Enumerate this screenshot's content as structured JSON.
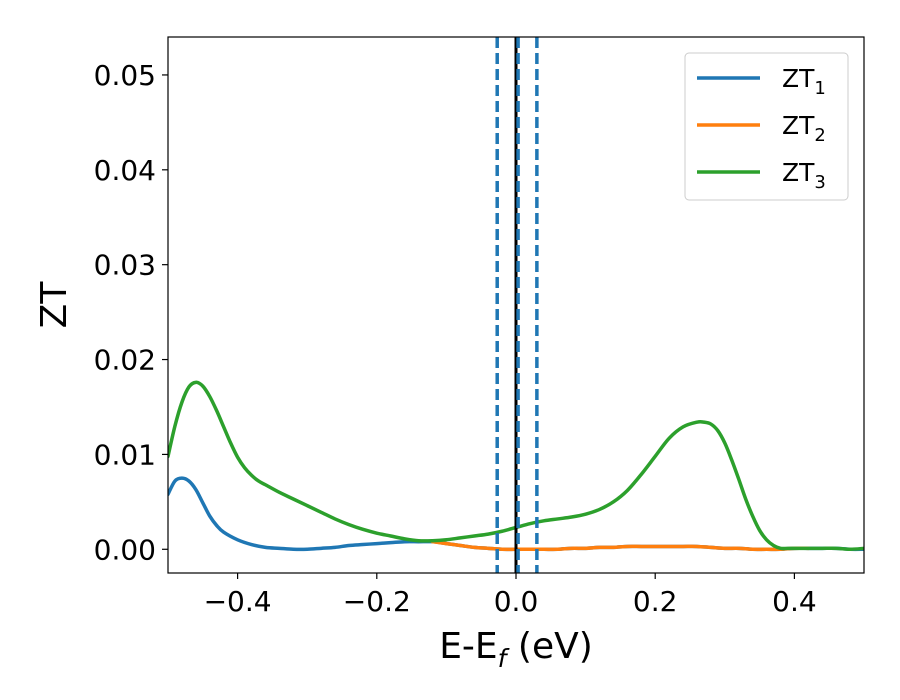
{
  "chart_data": {
    "type": "line",
    "xlabel": "E-E",
    "xlabel_sub": "f",
    "xlabel_unit": " (eV)",
    "ylabel": "ZT",
    "xlim": [
      -0.5,
      0.5
    ],
    "ylim": [
      -0.0025,
      0.054
    ],
    "xticks": [
      -0.4,
      -0.2,
      0.0,
      0.2,
      0.4
    ],
    "xtick_labels": [
      "−0.4",
      "−0.2",
      "0.0",
      "0.2",
      "0.4"
    ],
    "yticks": [
      0.0,
      0.01,
      0.02,
      0.03,
      0.04,
      0.05
    ],
    "ytick_labels": [
      "0.00",
      "0.01",
      "0.02",
      "0.03",
      "0.04",
      "0.05"
    ],
    "grid": false,
    "legend_position": "top-right",
    "series": [
      {
        "name": "ZT",
        "name_sub": "1",
        "color": "#1f77b4",
        "x": [
          -0.5,
          -0.49,
          -0.48,
          -0.47,
          -0.46,
          -0.45,
          -0.44,
          -0.43,
          -0.42,
          -0.4,
          -0.38,
          -0.36,
          -0.34,
          -0.32,
          -0.3,
          -0.28,
          -0.26,
          -0.24,
          -0.22,
          -0.2,
          -0.18,
          -0.16,
          -0.14,
          -0.12,
          -0.1,
          -0.08,
          -0.06,
          -0.04,
          -0.02,
          0.0,
          0.02,
          0.04,
          0.06,
          0.08,
          0.1,
          0.12,
          0.14,
          0.16,
          0.18,
          0.2,
          0.22,
          0.24,
          0.26,
          0.28,
          0.3,
          0.32,
          0.34,
          0.36,
          0.38,
          0.4,
          0.42,
          0.44,
          0.46,
          0.48,
          0.5
        ],
        "y": [
          0.0058,
          0.0072,
          0.0075,
          0.0072,
          0.0063,
          0.0049,
          0.0035,
          0.0025,
          0.0018,
          0.001,
          0.0005,
          0.0002,
          0.0001,
          0.0,
          0.0,
          0.0001,
          0.0002,
          0.0004,
          0.0005,
          0.0006,
          0.0007,
          0.0008,
          0.0008,
          0.0008,
          0.0006,
          0.0004,
          0.0002,
          0.0001,
          0.0,
          0.0,
          0.0,
          0.0,
          0.0,
          0.0001,
          0.0001,
          0.0002,
          0.0002,
          0.0003,
          0.0003,
          0.0003,
          0.0003,
          0.0003,
          0.0003,
          0.0002,
          0.0001,
          0.0001,
          0.0,
          0.0,
          0.0,
          0.0001,
          0.0001,
          0.0001,
          0.0001,
          0.0,
          0.0
        ]
      },
      {
        "name": "ZT",
        "name_sub": "2",
        "color": "#ff7f0e",
        "x": [
          -0.12,
          -0.1,
          -0.08,
          -0.06,
          -0.04,
          -0.02,
          0.0,
          0.02,
          0.04,
          0.06,
          0.08,
          0.1,
          0.12,
          0.14,
          0.16,
          0.18,
          0.2,
          0.22,
          0.24,
          0.26,
          0.28,
          0.3,
          0.32,
          0.34,
          0.36,
          0.38,
          0.4,
          0.42
        ],
        "y": [
          0.0008,
          0.0006,
          0.0004,
          0.0002,
          0.0001,
          0.0,
          0.0,
          0.0,
          0.0,
          0.0,
          0.0001,
          0.0001,
          0.0002,
          0.0002,
          0.0003,
          0.0003,
          0.0003,
          0.0003,
          0.0003,
          0.0003,
          0.0002,
          0.0001,
          0.0001,
          0.0,
          0.0,
          0.0,
          0.0001,
          0.0001
        ]
      },
      {
        "name": "ZT",
        "name_sub": "3",
        "color": "#2ca02c",
        "x": [
          -0.5,
          -0.49,
          -0.48,
          -0.47,
          -0.46,
          -0.45,
          -0.44,
          -0.43,
          -0.42,
          -0.41,
          -0.4,
          -0.39,
          -0.38,
          -0.37,
          -0.36,
          -0.34,
          -0.32,
          -0.3,
          -0.28,
          -0.26,
          -0.24,
          -0.22,
          -0.2,
          -0.18,
          -0.16,
          -0.14,
          -0.12,
          -0.1,
          -0.08,
          -0.06,
          -0.04,
          -0.02,
          0.0,
          0.02,
          0.04,
          0.06,
          0.08,
          0.1,
          0.12,
          0.14,
          0.16,
          0.18,
          0.2,
          0.22,
          0.24,
          0.26,
          0.27,
          0.28,
          0.29,
          0.3,
          0.31,
          0.32,
          0.33,
          0.34,
          0.35,
          0.36,
          0.37,
          0.38,
          0.39,
          0.4,
          0.41,
          0.42,
          0.44,
          0.46,
          0.48,
          0.5
        ],
        "y": [
          0.0098,
          0.013,
          0.0155,
          0.0171,
          0.0176,
          0.0172,
          0.0161,
          0.0146,
          0.0129,
          0.0112,
          0.0097,
          0.0086,
          0.0078,
          0.0072,
          0.0068,
          0.006,
          0.0053,
          0.0046,
          0.0039,
          0.0032,
          0.0026,
          0.0021,
          0.0017,
          0.0014,
          0.0011,
          0.0009,
          0.0009,
          0.001,
          0.0012,
          0.0014,
          0.0016,
          0.0019,
          0.0023,
          0.0027,
          0.003,
          0.0032,
          0.0034,
          0.0037,
          0.0042,
          0.005,
          0.0062,
          0.0079,
          0.0098,
          0.0117,
          0.0129,
          0.0134,
          0.0134,
          0.0132,
          0.0125,
          0.0112,
          0.0094,
          0.0074,
          0.0053,
          0.0035,
          0.002,
          0.001,
          0.0004,
          0.0001,
          0.0001,
          0.0001,
          0.0001,
          0.0001,
          0.0001,
          0.0001,
          0.0,
          0.0001
        ]
      }
    ],
    "vlines": [
      {
        "x": 0.0,
        "color": "#000000",
        "style": "solid"
      },
      {
        "x": -0.027,
        "color": "#1f77b4",
        "style": "dashed"
      },
      {
        "x": 0.003,
        "color": "#1f77b4",
        "style": "dashed"
      },
      {
        "x": 0.03,
        "color": "#1f77b4",
        "style": "dashed"
      }
    ]
  }
}
